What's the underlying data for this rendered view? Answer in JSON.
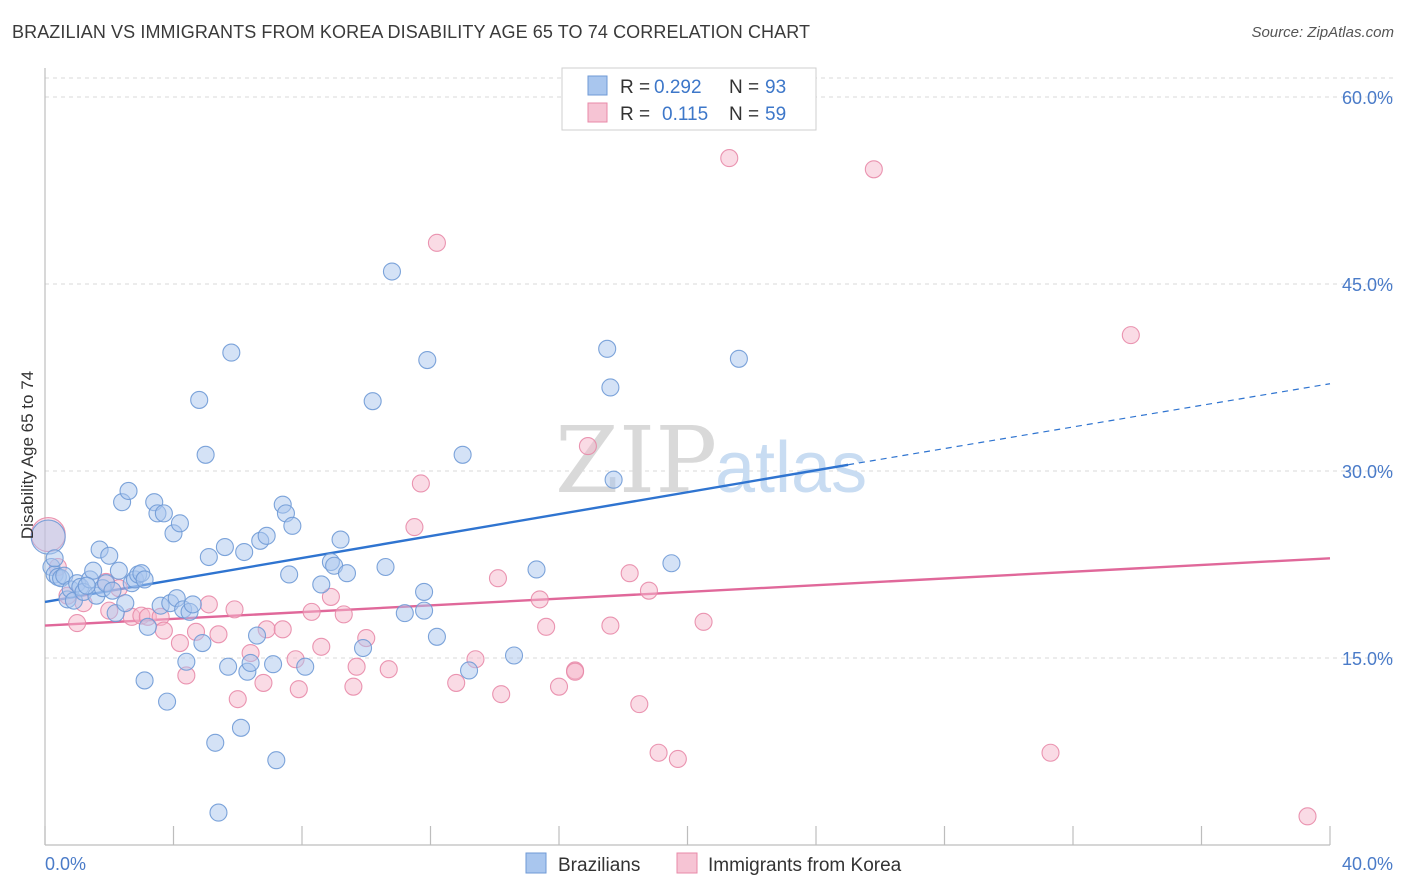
{
  "header": {
    "title": "BRAZILIAN VS IMMIGRANTS FROM KOREA DISABILITY AGE 65 TO 74 CORRELATION CHART",
    "source": "Source: ZipAtlas.com"
  },
  "watermark": {
    "zip": "ZIP",
    "atlas": "atlas"
  },
  "legend_top": {
    "rows": [
      {
        "r_label": "R =",
        "r_value": "0.292",
        "n_label": "N =",
        "n_value": "93"
      },
      {
        "r_label": "R =",
        "r_value": "0.115",
        "n_label": "N =",
        "n_value": "59"
      }
    ]
  },
  "legend_bottom": {
    "items": [
      "Brazilians",
      "Immigrants from Korea"
    ]
  },
  "colors": {
    "blue_fill": "#a9c6ee",
    "blue_stroke": "#6f9ad6",
    "blue_line": "#2f74d0",
    "pink_fill": "#f6b8cb",
    "pink_stroke": "#e88aa8",
    "pink_line": "#e0689a",
    "tick_text": "#4a7bc8",
    "grid": "#d8d8d8"
  },
  "chart_data": {
    "type": "scatter",
    "title": "BRAZILIAN VS IMMIGRANTS FROM KOREA DISABILITY AGE 65 TO 74 CORRELATION CHART",
    "xlabel": "",
    "ylabel": "Disability Age 65 to 74",
    "xlim": [
      0,
      40
    ],
    "ylim": [
      0,
      60
    ],
    "x_tick_labels": [
      "0.0%",
      "40.0%"
    ],
    "y_ticks": [
      15,
      30,
      45,
      60
    ],
    "y_tick_labels": [
      "15.0%",
      "30.0%",
      "45.0%",
      "60.0%"
    ],
    "grid": true,
    "legend_position": "bottom-center",
    "series": [
      {
        "name": "Brazilians",
        "R": 0.292,
        "N": 93,
        "trend": {
          "x0": 0,
          "y0": 19.5,
          "x1": 25,
          "y1": 30.5,
          "dashed_to_x": 40,
          "dashed_to_y": 37
        },
        "points": [
          [
            0.1,
            24.7
          ],
          [
            0.2,
            22.3
          ],
          [
            0.3,
            21.7
          ],
          [
            0.4,
            21.5
          ],
          [
            0.5,
            21.4
          ],
          [
            0.6,
            21.6
          ],
          [
            0.7,
            19.7
          ],
          [
            0.8,
            20.5
          ],
          [
            0.9,
            19.6
          ],
          [
            1.0,
            21.0
          ],
          [
            1.1,
            20.7
          ],
          [
            1.2,
            20.3
          ],
          [
            1.4,
            21.3
          ],
          [
            1.5,
            22.0
          ],
          [
            1.6,
            20.0
          ],
          [
            1.7,
            23.7
          ],
          [
            1.8,
            20.6
          ],
          [
            1.9,
            21.0
          ],
          [
            2.0,
            23.2
          ],
          [
            2.1,
            20.4
          ],
          [
            2.2,
            18.6
          ],
          [
            2.3,
            22.0
          ],
          [
            2.4,
            27.5
          ],
          [
            2.5,
            19.4
          ],
          [
            2.6,
            28.4
          ],
          [
            2.7,
            21.0
          ],
          [
            2.8,
            21.3
          ],
          [
            2.9,
            21.7
          ],
          [
            3.0,
            21.8
          ],
          [
            3.1,
            21.3
          ],
          [
            3.1,
            13.2
          ],
          [
            3.2,
            17.5
          ],
          [
            3.4,
            27.5
          ],
          [
            3.5,
            26.6
          ],
          [
            3.6,
            19.2
          ],
          [
            3.7,
            26.6
          ],
          [
            3.8,
            11.5
          ],
          [
            3.9,
            19.4
          ],
          [
            4.0,
            25.0
          ],
          [
            4.1,
            19.8
          ],
          [
            4.2,
            25.8
          ],
          [
            4.3,
            18.9
          ],
          [
            4.4,
            14.7
          ],
          [
            4.5,
            18.7
          ],
          [
            4.6,
            19.3
          ],
          [
            4.8,
            35.7
          ],
          [
            4.9,
            16.2
          ],
          [
            5.0,
            31.3
          ],
          [
            5.1,
            23.1
          ],
          [
            5.3,
            8.2
          ],
          [
            5.4,
            2.6
          ],
          [
            5.6,
            23.9
          ],
          [
            5.7,
            14.3
          ],
          [
            5.8,
            39.5
          ],
          [
            6.1,
            9.4
          ],
          [
            6.2,
            23.5
          ],
          [
            6.3,
            13.9
          ],
          [
            6.4,
            14.6
          ],
          [
            6.6,
            16.8
          ],
          [
            6.7,
            24.4
          ],
          [
            6.9,
            24.8
          ],
          [
            7.1,
            14.5
          ],
          [
            7.2,
            6.8
          ],
          [
            7.4,
            27.3
          ],
          [
            7.5,
            26.6
          ],
          [
            7.6,
            21.7
          ],
          [
            7.7,
            25.6
          ],
          [
            8.1,
            14.3
          ],
          [
            8.6,
            20.9
          ],
          [
            8.9,
            22.7
          ],
          [
            9.0,
            22.4
          ],
          [
            9.2,
            24.5
          ],
          [
            9.4,
            21.8
          ],
          [
            9.9,
            15.8
          ],
          [
            10.2,
            35.6
          ],
          [
            10.6,
            22.3
          ],
          [
            10.8,
            46.0
          ],
          [
            11.2,
            18.6
          ],
          [
            11.8,
            20.3
          ],
          [
            11.8,
            18.8
          ],
          [
            11.9,
            38.9
          ],
          [
            12.2,
            16.7
          ],
          [
            13.0,
            31.3
          ],
          [
            13.2,
            14.0
          ],
          [
            14.6,
            15.2
          ],
          [
            15.3,
            22.1
          ],
          [
            17.5,
            39.8
          ],
          [
            17.6,
            36.7
          ],
          [
            17.7,
            29.3
          ],
          [
            19.5,
            22.6
          ],
          [
            21.6,
            39.0
          ],
          [
            0.3,
            23.0
          ],
          [
            1.3,
            20.8
          ]
        ]
      },
      {
        "name": "Immigrants from Korea",
        "R": 0.115,
        "N": 59,
        "trend": {
          "x0": 0,
          "y0": 17.6,
          "x1": 40,
          "y1": 23.0
        },
        "points": [
          [
            0.1,
            24.9
          ],
          [
            0.4,
            22.3
          ],
          [
            0.7,
            20.0
          ],
          [
            1.0,
            17.8
          ],
          [
            1.2,
            19.4
          ],
          [
            1.9,
            21.1
          ],
          [
            2.0,
            18.8
          ],
          [
            2.3,
            20.6
          ],
          [
            2.7,
            18.3
          ],
          [
            3.0,
            18.4
          ],
          [
            3.2,
            18.3
          ],
          [
            3.6,
            18.3
          ],
          [
            3.7,
            17.2
          ],
          [
            4.2,
            16.2
          ],
          [
            4.4,
            13.6
          ],
          [
            4.7,
            17.1
          ],
          [
            5.1,
            19.3
          ],
          [
            5.4,
            16.9
          ],
          [
            5.9,
            18.9
          ],
          [
            6.0,
            11.7
          ],
          [
            6.4,
            15.4
          ],
          [
            6.8,
            13.0
          ],
          [
            6.9,
            17.3
          ],
          [
            7.4,
            17.3
          ],
          [
            7.8,
            14.9
          ],
          [
            7.9,
            12.5
          ],
          [
            8.3,
            18.7
          ],
          [
            8.6,
            15.9
          ],
          [
            8.9,
            19.9
          ],
          [
            9.3,
            18.5
          ],
          [
            9.6,
            12.7
          ],
          [
            9.7,
            14.3
          ],
          [
            10.0,
            16.6
          ],
          [
            10.7,
            14.1
          ],
          [
            11.5,
            25.5
          ],
          [
            11.7,
            29.0
          ],
          [
            12.2,
            48.3
          ],
          [
            12.8,
            13.0
          ],
          [
            13.4,
            14.9
          ],
          [
            14.1,
            21.4
          ],
          [
            14.2,
            12.1
          ],
          [
            15.4,
            19.7
          ],
          [
            15.6,
            17.5
          ],
          [
            16.0,
            12.7
          ],
          [
            16.5,
            14.0
          ],
          [
            16.9,
            32.0
          ],
          [
            17.6,
            17.6
          ],
          [
            18.2,
            21.8
          ],
          [
            18.5,
            11.3
          ],
          [
            18.8,
            20.4
          ],
          [
            19.1,
            7.4
          ],
          [
            19.7,
            6.9
          ],
          [
            20.5,
            17.9
          ],
          [
            21.3,
            55.1
          ],
          [
            25.8,
            54.2
          ],
          [
            31.3,
            7.4
          ],
          [
            33.8,
            40.9
          ],
          [
            39.3,
            2.3
          ],
          [
            16.5,
            13.9
          ]
        ]
      }
    ]
  }
}
